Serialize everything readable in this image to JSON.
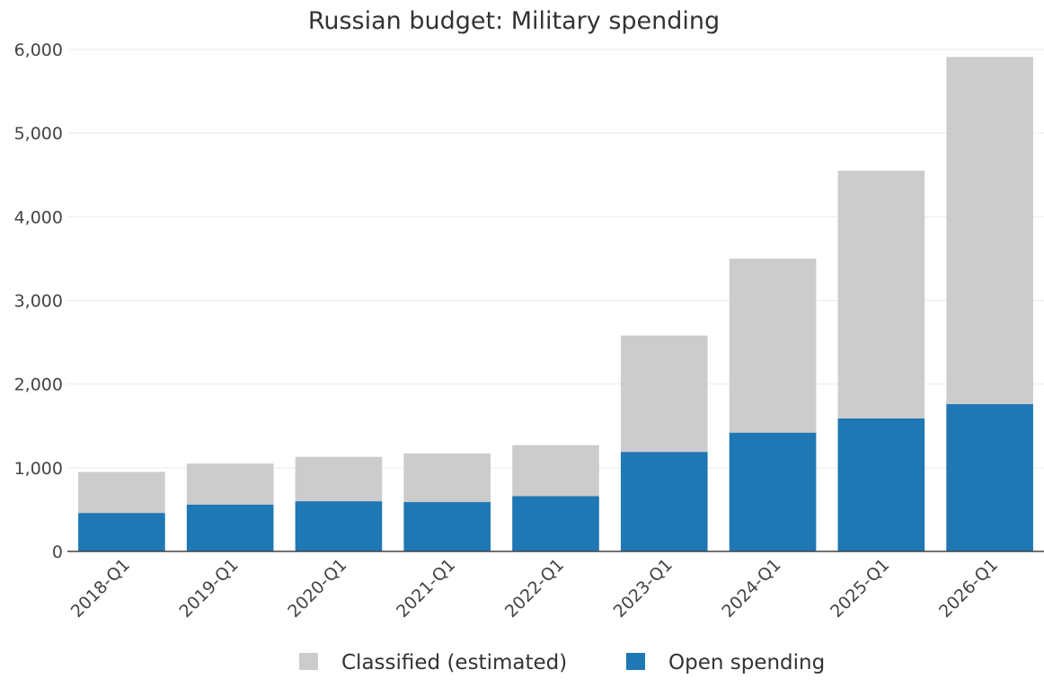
{
  "chart_data": {
    "type": "bar",
    "stacked": true,
    "title": "Russian budget: Military spending",
    "xlabel": "",
    "ylabel": "",
    "ylim": [
      0,
      6000
    ],
    "yticks": [
      0,
      1000,
      2000,
      3000,
      4000,
      5000,
      6000
    ],
    "ytick_labels": [
      "0",
      "1,000",
      "2,000",
      "3,000",
      "4,000",
      "5,000",
      "6,000"
    ],
    "grid": true,
    "legend_position": "bottom",
    "categories": [
      "2018-Q1",
      "2019-Q1",
      "2020-Q1",
      "2021-Q1",
      "2022-Q1",
      "2023-Q1",
      "2024-Q1",
      "2025-Q1",
      "2026-Q1"
    ],
    "series": [
      {
        "name": "Open spending",
        "color": "#1f77b4",
        "values": [
          460,
          560,
          600,
          590,
          660,
          1190,
          1420,
          1590,
          1760
        ]
      },
      {
        "name": "Classified (estimated)",
        "color": "#cccccc",
        "values": [
          490,
          490,
          530,
          580,
          610,
          1390,
          2080,
          2960,
          4150
        ]
      }
    ],
    "legend": [
      {
        "name": "Classified (estimated)",
        "color": "#cccccc"
      },
      {
        "name": "Open spending",
        "color": "#1f77b4"
      }
    ]
  }
}
